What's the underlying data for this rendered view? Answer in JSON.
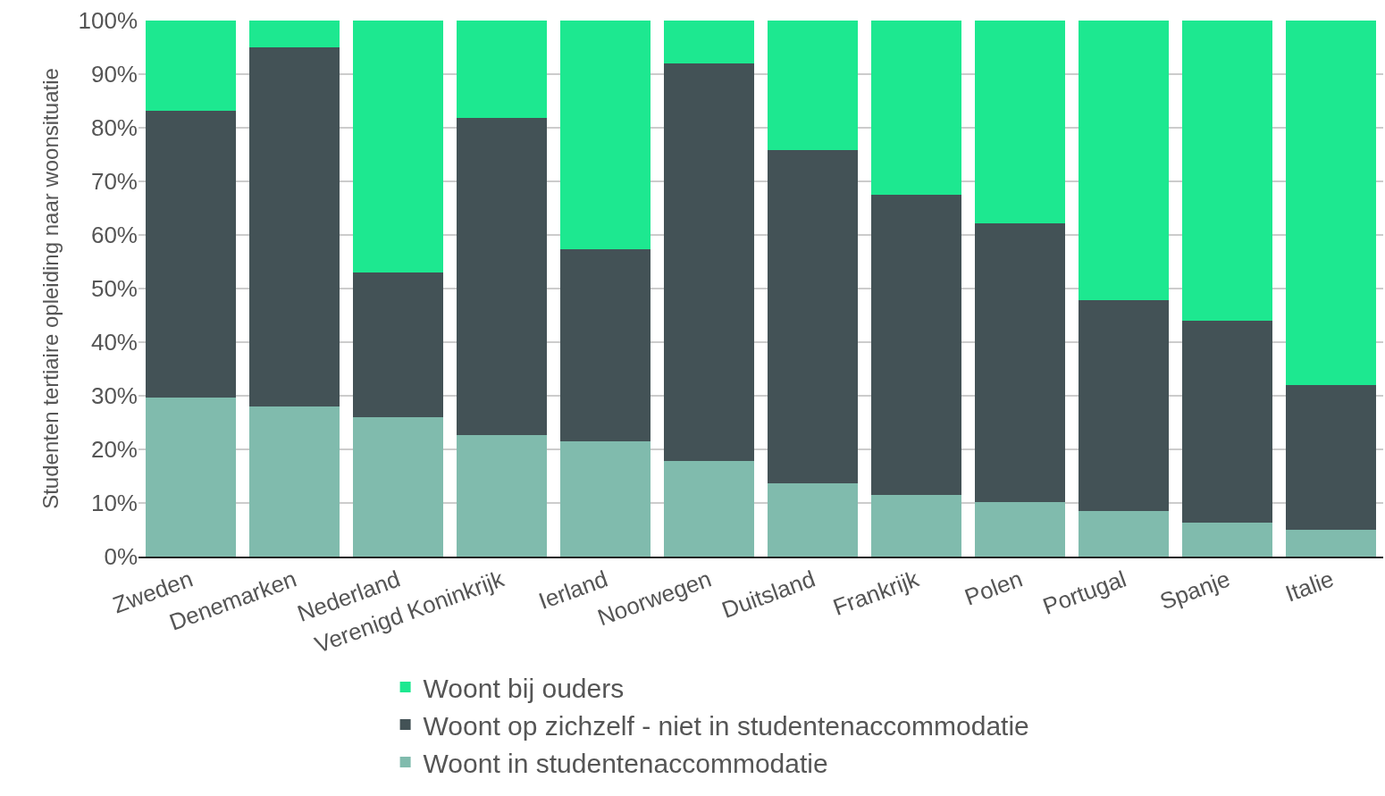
{
  "chart_data": {
    "type": "bar",
    "stacked": true,
    "ylabel": "Studenten tertiaire opleiding naar woonsituatie",
    "categories": [
      "Zweden",
      "Denemarken",
      "Nederland",
      "Verenigd Koninkrijk",
      "Ierland",
      "Noorwegen",
      "Duitsland",
      "Frankrijk",
      "Polen",
      "Portugal",
      "Spanje",
      "Italie"
    ],
    "series": [
      {
        "name": "Woont in studentenaccommodatie",
        "color": "#80bbad",
        "values": [
          29.7,
          28,
          26,
          22.7,
          21.5,
          17.8,
          13.7,
          11.5,
          10.2,
          8.5,
          6.3,
          5
        ]
      },
      {
        "name": "Woont op zichzelf - niet in studentenaccommodatie",
        "color": "#435256",
        "values": [
          53.5,
          67,
          27,
          59.1,
          35.8,
          74.2,
          62.1,
          56,
          52,
          39.3,
          37.7,
          27
        ]
      },
      {
        "name": "Woont bij ouders",
        "color": "#1de890",
        "values": [
          16.8,
          5,
          47,
          18.2,
          42.7,
          8,
          24.2,
          32.5,
          37.8,
          52.2,
          56,
          68
        ]
      }
    ],
    "ylim": [
      0,
      100
    ],
    "yticks": [
      {
        "value": 0,
        "label": "0%"
      },
      {
        "value": 10,
        "label": "10%"
      },
      {
        "value": 20,
        "label": "20%"
      },
      {
        "value": 30,
        "label": "30%"
      },
      {
        "value": 40,
        "label": "40%"
      },
      {
        "value": 50,
        "label": "50%"
      },
      {
        "value": 60,
        "label": "60%"
      },
      {
        "value": 70,
        "label": "70%"
      },
      {
        "value": 80,
        "label": "80%"
      },
      {
        "value": 90,
        "label": "90%"
      },
      {
        "value": 100,
        "label": "100%"
      }
    ],
    "grid": "y",
    "legend": "bottom"
  }
}
